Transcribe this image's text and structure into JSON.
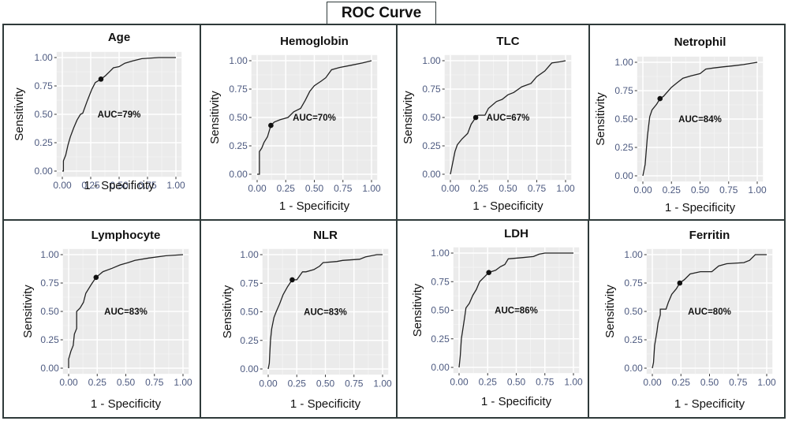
{
  "figure_title": "ROC Curve",
  "chart_data": [
    {
      "type": "line",
      "title": "Age",
      "xlabel": "1 - Specificity",
      "ylabel": "Sensitivity",
      "xlim": [
        0,
        1
      ],
      "ylim": [
        0,
        1
      ],
      "xticks": [
        "0.00",
        "0.25",
        "0.50",
        "0.75",
        "1.00"
      ],
      "yticks": [
        "0.00",
        "0.25",
        "0.50",
        "0.75",
        "1.00"
      ],
      "grid": true,
      "annotation": "AUC=79%",
      "auc": 0.79,
      "cutoff_point": [
        0.34,
        0.81
      ],
      "series": [
        {
          "name": "Age",
          "x": [
            0,
            0.01,
            0.01,
            0.03,
            0.05,
            0.07,
            0.1,
            0.13,
            0.16,
            0.18,
            0.22,
            0.26,
            0.29,
            0.34,
            0.38,
            0.42,
            0.45,
            0.5,
            0.55,
            0.62,
            0.7,
            0.85,
            1.0
          ],
          "y": [
            0,
            0.0,
            0.09,
            0.14,
            0.23,
            0.3,
            0.38,
            0.45,
            0.5,
            0.51,
            0.62,
            0.72,
            0.78,
            0.81,
            0.84,
            0.88,
            0.91,
            0.92,
            0.95,
            0.97,
            0.99,
            1.0,
            1.0
          ]
        }
      ]
    },
    {
      "type": "line",
      "title": "Hemoglobin",
      "xlabel": "1 - Specificity",
      "ylabel": "Sensitivity",
      "xlim": [
        0,
        1
      ],
      "ylim": [
        0,
        1
      ],
      "xticks": [
        "0.00",
        "0.25",
        "0.50",
        "0.75",
        "1.00"
      ],
      "yticks": [
        "0.00",
        "0.25",
        "0.50",
        "0.75",
        "1.00"
      ],
      "grid": true,
      "annotation": "AUC=70%",
      "auc": 0.7,
      "cutoff_point": [
        0.12,
        0.43
      ],
      "series": [
        {
          "name": "Hemoglobin",
          "x": [
            0,
            0.02,
            0.02,
            0.04,
            0.06,
            0.09,
            0.12,
            0.15,
            0.2,
            0.27,
            0.32,
            0.38,
            0.42,
            0.46,
            0.5,
            0.56,
            0.6,
            0.65,
            0.72,
            0.82,
            0.92,
            1.0
          ],
          "y": [
            0,
            0.0,
            0.2,
            0.23,
            0.28,
            0.33,
            0.43,
            0.46,
            0.48,
            0.5,
            0.55,
            0.58,
            0.65,
            0.73,
            0.78,
            0.82,
            0.85,
            0.92,
            0.94,
            0.96,
            0.98,
            1.0
          ]
        }
      ]
    },
    {
      "type": "line",
      "title": "TLC",
      "xlabel": "1 - Specificity",
      "ylabel": "Sensitivity",
      "xlim": [
        0,
        1
      ],
      "ylim": [
        0,
        1
      ],
      "xticks": [
        "0.00",
        "0.25",
        "0.50",
        "0.75",
        "1.00"
      ],
      "yticks": [
        "0.00",
        "0.25",
        "0.50",
        "0.75",
        "1.00"
      ],
      "grid": true,
      "annotation": "AUC=67%",
      "auc": 0.67,
      "cutoff_point": [
        0.22,
        0.5
      ],
      "series": [
        {
          "name": "TLC",
          "x": [
            0,
            0.02,
            0.04,
            0.06,
            0.1,
            0.15,
            0.18,
            0.22,
            0.24,
            0.3,
            0.33,
            0.4,
            0.45,
            0.5,
            0.55,
            0.62,
            0.7,
            0.75,
            0.82,
            0.88,
            0.95,
            1.0
          ],
          "y": [
            0,
            0.1,
            0.2,
            0.26,
            0.31,
            0.36,
            0.44,
            0.5,
            0.52,
            0.52,
            0.58,
            0.64,
            0.66,
            0.7,
            0.72,
            0.77,
            0.8,
            0.86,
            0.91,
            0.98,
            0.99,
            1.0
          ]
        }
      ]
    },
    {
      "type": "line",
      "title": "Netrophil",
      "xlabel": "1 - Specificity",
      "ylabel": "Sensitivity",
      "xlim": [
        0,
        1
      ],
      "ylim": [
        0,
        1
      ],
      "xticks": [
        "0.00",
        "0.25",
        "0.50",
        "0.75",
        "1.00"
      ],
      "yticks": [
        "0.00",
        "0.25",
        "0.50",
        "0.75",
        "1.00"
      ],
      "grid": true,
      "annotation": "AUC=84%",
      "auc": 0.84,
      "cutoff_point": [
        0.15,
        0.68
      ],
      "series": [
        {
          "name": "Netrophil",
          "x": [
            0,
            0.02,
            0.04,
            0.06,
            0.08,
            0.12,
            0.15,
            0.18,
            0.25,
            0.3,
            0.35,
            0.42,
            0.5,
            0.55,
            0.62,
            0.7,
            0.8,
            0.88,
            1.0
          ],
          "y": [
            0,
            0.1,
            0.35,
            0.52,
            0.58,
            0.63,
            0.68,
            0.7,
            0.78,
            0.82,
            0.86,
            0.88,
            0.9,
            0.94,
            0.95,
            0.96,
            0.97,
            0.98,
            1.0
          ]
        }
      ]
    },
    {
      "type": "line",
      "title": "Lymphocyte",
      "xlabel": "1 - Specificity",
      "ylabel": "Sensitivity",
      "xlim": [
        0,
        1
      ],
      "ylim": [
        0,
        1
      ],
      "xticks": [
        "0.00",
        "0.25",
        "0.50",
        "0.75",
        "1.00"
      ],
      "yticks": [
        "0.00",
        "0.25",
        "0.50",
        "0.75",
        "1.00"
      ],
      "grid": true,
      "annotation": "AUC=83%",
      "auc": 0.83,
      "cutoff_point": [
        0.24,
        0.8
      ],
      "series": [
        {
          "name": "Lymphocyte",
          "x": [
            0,
            0.0,
            0.02,
            0.04,
            0.05,
            0.07,
            0.07,
            0.1,
            0.13,
            0.15,
            0.2,
            0.24,
            0.3,
            0.38,
            0.45,
            0.52,
            0.58,
            0.7,
            0.85,
            1.0
          ],
          "y": [
            0,
            0.08,
            0.15,
            0.2,
            0.3,
            0.35,
            0.5,
            0.53,
            0.58,
            0.66,
            0.74,
            0.8,
            0.85,
            0.88,
            0.91,
            0.93,
            0.95,
            0.97,
            0.99,
            1.0
          ]
        }
      ]
    },
    {
      "type": "line",
      "title": "NLR",
      "xlabel": "1 - Specificity",
      "ylabel": "Sensitivity",
      "xlim": [
        0,
        1
      ],
      "ylim": [
        0,
        1
      ],
      "xticks": [
        "0.00",
        "0.25",
        "0.50",
        "0.75",
        "1.00"
      ],
      "yticks": [
        "0.00",
        "0.25",
        "0.50",
        "0.75",
        "1.00"
      ],
      "grid": true,
      "annotation": "AUC=83%",
      "auc": 0.83,
      "cutoff_point": [
        0.21,
        0.78
      ],
      "series": [
        {
          "name": "NLR",
          "x": [
            0,
            0.01,
            0.02,
            0.03,
            0.05,
            0.07,
            0.1,
            0.13,
            0.17,
            0.21,
            0.25,
            0.3,
            0.33,
            0.4,
            0.45,
            0.48,
            0.6,
            0.65,
            0.8,
            0.85,
            0.95,
            1.0
          ],
          "y": [
            0,
            0.05,
            0.25,
            0.35,
            0.45,
            0.5,
            0.57,
            0.65,
            0.72,
            0.78,
            0.78,
            0.85,
            0.85,
            0.87,
            0.9,
            0.93,
            0.94,
            0.95,
            0.96,
            0.98,
            1.0,
            1.0
          ]
        }
      ]
    },
    {
      "type": "line",
      "title": "LDH",
      "xlabel": "1 - Specificity",
      "ylabel": "Sensitivity",
      "xlim": [
        0,
        1
      ],
      "ylim": [
        0,
        1
      ],
      "xticks": [
        "0.00",
        "0.25",
        "0.50",
        "0.75",
        "1.00"
      ],
      "yticks": [
        "0.00",
        "0.25",
        "0.50",
        "0.75",
        "1.00"
      ],
      "grid": true,
      "annotation": "AUC=86%",
      "auc": 0.86,
      "cutoff_point": [
        0.26,
        0.83
      ],
      "series": [
        {
          "name": "LDH",
          "x": [
            0,
            0.01,
            0.02,
            0.04,
            0.05,
            0.06,
            0.09,
            0.12,
            0.15,
            0.18,
            0.22,
            0.26,
            0.32,
            0.36,
            0.4,
            0.43,
            0.55,
            0.65,
            0.7,
            0.75,
            1.0
          ],
          "y": [
            0,
            0.1,
            0.25,
            0.38,
            0.45,
            0.52,
            0.56,
            0.63,
            0.68,
            0.75,
            0.79,
            0.83,
            0.85,
            0.88,
            0.9,
            0.95,
            0.96,
            0.97,
            0.99,
            1.0,
            1.0
          ]
        }
      ]
    },
    {
      "type": "line",
      "title": "Ferritin",
      "xlabel": "1 - Specificity",
      "ylabel": "Sensitivity",
      "xlim": [
        0,
        1
      ],
      "ylim": [
        0,
        1
      ],
      "xticks": [
        "0.00",
        "0.25",
        "0.50",
        "0.75",
        "1.00"
      ],
      "yticks": [
        "0.00",
        "0.25",
        "0.50",
        "0.75",
        "1.00"
      ],
      "grid": true,
      "annotation": "AUC=80%",
      "auc": 0.8,
      "cutoff_point": [
        0.24,
        0.75
      ],
      "series": [
        {
          "name": "Ferritin",
          "x": [
            0,
            0.01,
            0.02,
            0.04,
            0.05,
            0.07,
            0.07,
            0.12,
            0.14,
            0.17,
            0.21,
            0.24,
            0.28,
            0.33,
            0.42,
            0.52,
            0.58,
            0.65,
            0.8,
            0.85,
            0.88,
            0.9,
            1.0
          ],
          "y": [
            0,
            0.05,
            0.2,
            0.32,
            0.4,
            0.47,
            0.52,
            0.52,
            0.58,
            0.65,
            0.7,
            0.75,
            0.78,
            0.83,
            0.85,
            0.85,
            0.9,
            0.92,
            0.93,
            0.95,
            0.98,
            1.0,
            1.0
          ]
        }
      ]
    }
  ]
}
